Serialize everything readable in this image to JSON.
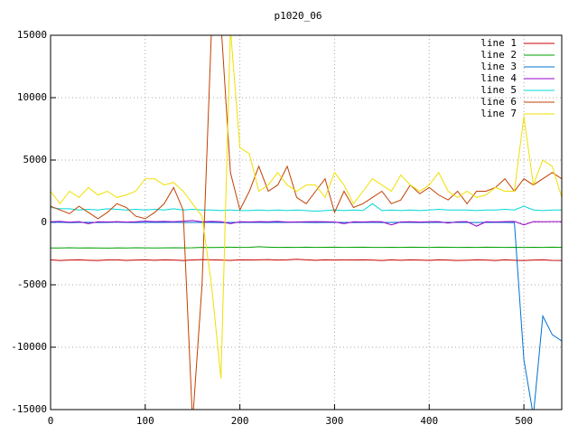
{
  "chart_data": {
    "type": "line",
    "title": "p1020_06",
    "x": [
      0,
      10,
      20,
      30,
      40,
      50,
      60,
      70,
      80,
      90,
      100,
      110,
      120,
      130,
      140,
      150,
      160,
      170,
      180,
      190,
      200,
      210,
      220,
      230,
      240,
      250,
      260,
      270,
      280,
      290,
      300,
      310,
      320,
      330,
      340,
      350,
      360,
      370,
      380,
      390,
      400,
      410,
      420,
      430,
      440,
      450,
      460,
      470,
      480,
      490,
      500,
      510,
      520,
      530,
      540
    ],
    "xlim": [
      0,
      540
    ],
    "xticks": [
      0,
      100,
      200,
      300,
      400,
      500
    ],
    "ylim": [
      -15000,
      15000
    ],
    "yticks": [
      -15000,
      -10000,
      -5000,
      0,
      5000,
      10000,
      15000
    ],
    "grid": true,
    "legend": "top-right",
    "series": [
      {
        "name": "line 1",
        "color": "#c80000",
        "values": [
          -3000,
          -3050,
          -3020,
          -3000,
          -3030,
          -3050,
          -3010,
          -3000,
          -3040,
          -3020,
          -3000,
          -3030,
          -3000,
          -3020,
          -3050,
          -3010,
          -2980,
          -3000,
          -3020,
          -3040,
          -3000,
          -3010,
          -3000,
          -2980,
          -3020,
          -3000,
          -2950,
          -3000,
          -3030,
          -3000,
          -3020,
          -3000,
          -3010,
          -3000,
          -3020,
          -3050,
          -3000,
          -3030,
          -3000,
          -3020,
          -3040,
          -3000,
          -3020,
          -3050,
          -3030,
          -3000,
          -3020,
          -3050,
          -3000,
          -3030,
          -3050,
          -3020,
          -3000,
          -3040,
          -3050
        ]
      },
      {
        "name": "line 2",
        "color": "#00a000",
        "values": [
          -2050,
          -2050,
          -2030,
          -2050,
          -2040,
          -2050,
          -2060,
          -2040,
          -2050,
          -2030,
          -2040,
          -2050,
          -2040,
          -2030,
          -2040,
          -2030,
          -2000,
          -2010,
          -2000,
          -1980,
          -2000,
          -1990,
          -1950,
          -1980,
          -2000,
          -1990,
          -2000,
          -1980,
          -2000,
          -1990,
          -1980,
          -2000,
          -1990,
          -1980,
          -2000,
          -2000,
          -1990,
          -2000,
          -1980,
          -1990,
          -2000,
          -1980,
          -1990,
          -2000,
          -1990,
          -2000,
          -1980,
          -1990,
          -2000,
          -1990,
          -2000,
          -1990,
          -2000,
          -1980,
          -2000
        ]
      },
      {
        "name": "line 3",
        "color": "#0070d0",
        "values": [
          0,
          20,
          -20,
          0,
          10,
          -10,
          0,
          20,
          0,
          -10,
          0,
          10,
          0,
          20,
          -10,
          0,
          10,
          0,
          -20,
          0,
          10,
          0,
          0,
          -10,
          10,
          0,
          20,
          0,
          -10,
          0,
          10,
          0,
          -10,
          0,
          10,
          -10,
          0,
          10,
          0,
          -10,
          0,
          0,
          10,
          0,
          0,
          -10,
          10,
          0,
          0,
          -20,
          -11000,
          -15500,
          -7500,
          -9000,
          -9500
        ]
      },
      {
        "name": "line 4",
        "color": "#9900cc",
        "values": [
          50,
          80,
          20,
          60,
          -100,
          50,
          40,
          60,
          30,
          50,
          100,
          60,
          80,
          50,
          100,
          150,
          50,
          80,
          60,
          -100,
          50,
          40,
          60,
          50,
          80,
          30,
          40,
          50,
          60,
          50,
          40,
          -100,
          50,
          40,
          60,
          50,
          -200,
          40,
          50,
          30,
          50,
          60,
          -50,
          50,
          60,
          -300,
          50,
          40,
          60,
          80,
          -200,
          60,
          50,
          60,
          60
        ]
      },
      {
        "name": "line 5",
        "color": "#00d8d8",
        "values": [
          1200,
          1100,
          1100,
          1000,
          1050,
          1000,
          1100,
          1050,
          1000,
          1050,
          1000,
          1050,
          1000,
          1100,
          1000,
          1050,
          1000,
          1000,
          950,
          1000,
          950,
          950,
          1000,
          950,
          1000,
          950,
          1000,
          950,
          900,
          950,
          1000,
          950,
          1000,
          950,
          1500,
          950,
          1000,
          950,
          1000,
          950,
          1000,
          1050,
          1000,
          1000,
          1000,
          950,
          1000,
          1000,
          1050,
          1000,
          1300,
          1000,
          950,
          1000,
          1000
        ]
      },
      {
        "name": "line 6",
        "color": "#c04000",
        "values": [
          1300,
          1000,
          700,
          1300,
          800,
          300,
          800,
          1500,
          1200,
          500,
          300,
          800,
          1500,
          2800,
          1000,
          -16000,
          -5000,
          15500,
          16000,
          4000,
          1000,
          2500,
          4500,
          2500,
          3000,
          4500,
          2000,
          1500,
          2500,
          3500,
          800,
          2500,
          1200,
          1500,
          2000,
          2500,
          1500,
          1800,
          3000,
          2300,
          2800,
          2200,
          1800,
          2500,
          1500,
          2500,
          2500,
          2800,
          3500,
          2500,
          3500,
          3000,
          3500,
          4000,
          3500
        ]
      },
      {
        "name": "line 7",
        "color": "#f0e000",
        "values": [
          2500,
          1500,
          2500,
          2000,
          2800,
          2200,
          2500,
          2000,
          2200,
          2500,
          3500,
          3500,
          3000,
          3200,
          2500,
          1500,
          500,
          -5000,
          -12500,
          15500,
          6000,
          5500,
          2500,
          3000,
          4000,
          3000,
          2500,
          3000,
          3000,
          2000,
          4000,
          3000,
          1500,
          2500,
          3500,
          3000,
          2500,
          3800,
          3000,
          2500,
          3000,
          4000,
          2500,
          2000,
          2500,
          2000,
          2200,
          2800,
          2500,
          2500,
          8500,
          3000,
          5000,
          4500,
          2000
        ]
      }
    ]
  }
}
